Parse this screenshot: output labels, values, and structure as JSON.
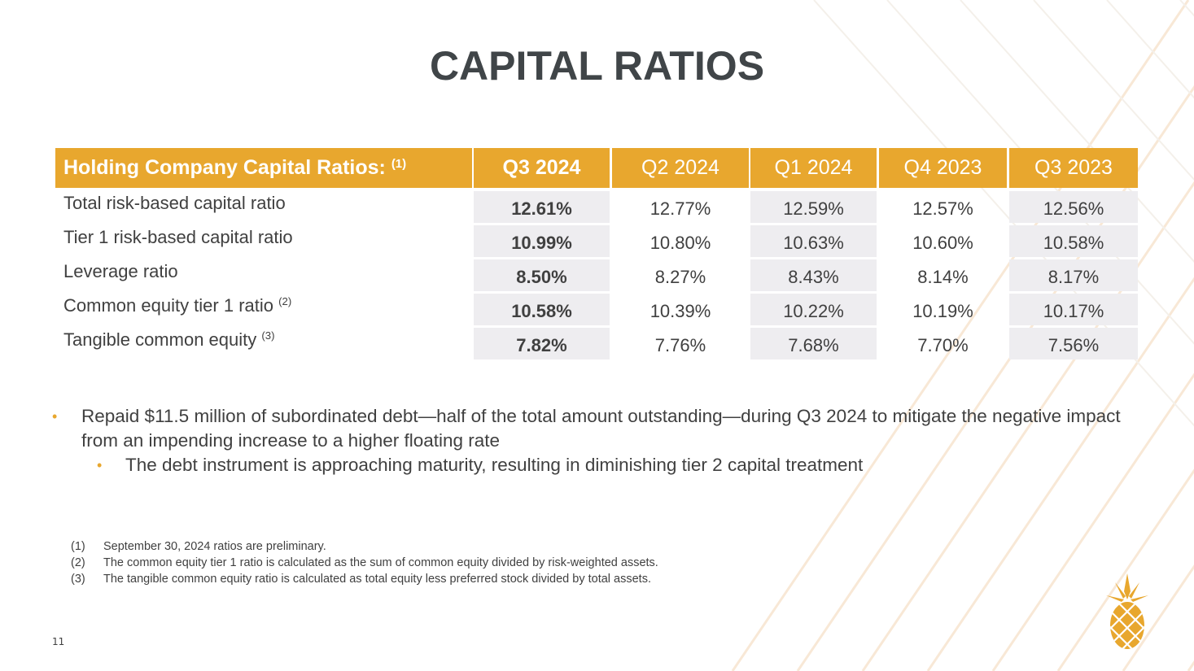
{
  "title": "CAPITAL RATIOS",
  "table": {
    "header_label": "Holding Company Capital Ratios:",
    "header_sup": "(1)",
    "columns": [
      "Q3 2024",
      "Q2 2024",
      "Q1 2024",
      "Q4 2023",
      "Q3 2023"
    ],
    "rows": [
      {
        "label": "Total risk-based capital ratio",
        "sup": "",
        "values": [
          "12.61%",
          "12.77%",
          "12.59%",
          "12.57%",
          "12.56%"
        ]
      },
      {
        "label": "Tier 1 risk-based capital ratio",
        "sup": "",
        "values": [
          "10.99%",
          "10.80%",
          "10.63%",
          "10.60%",
          "10.58%"
        ]
      },
      {
        "label": "Leverage ratio",
        "sup": "",
        "values": [
          "8.50%",
          "8.27%",
          "8.43%",
          "8.14%",
          "8.17%"
        ]
      },
      {
        "label": "Common equity tier 1 ratio",
        "sup": "(2)",
        "values": [
          "10.58%",
          "10.39%",
          "10.22%",
          "10.19%",
          "10.17%"
        ]
      },
      {
        "label": "Tangible common equity",
        "sup": "(3)",
        "values": [
          "7.82%",
          "7.76%",
          "7.68%",
          "7.70%",
          "7.56%"
        ]
      }
    ]
  },
  "bullets": {
    "main": "Repaid $11.5 million of subordinated debt—half of the total amount outstanding—during Q3 2024 to mitigate the negative impact from an impending increase to a higher floating rate",
    "sub": "The debt instrument is approaching maturity, resulting in diminishing tier 2 capital treatment"
  },
  "footnotes": [
    {
      "num": "(1)",
      "text": "September 30, 2024 ratios are preliminary."
    },
    {
      "num": "(2)",
      "text": "The common equity tier 1 ratio is calculated as the sum of common equity divided by risk-weighted assets."
    },
    {
      "num": "(3)",
      "text": "The tangible common equity ratio is calculated as total equity less preferred stock divided by total assets."
    }
  ],
  "page_number": "11",
  "colors": {
    "accent": "#e8a72e",
    "shade": "#eeedf0",
    "text": "#404040"
  },
  "logo": "pineapple-icon"
}
